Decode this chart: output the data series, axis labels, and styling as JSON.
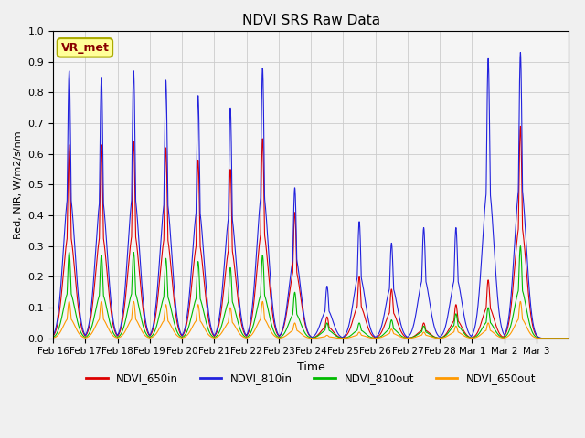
{
  "title": "NDVI SRS Raw Data",
  "xlabel": "Time",
  "ylabel": "Red, NIR, W/m2/s/nm",
  "ylim": [
    0.0,
    1.0
  ],
  "annotation": "VR_met",
  "bg_color": "#f0f0f0",
  "plot_bg_color": "#f5f5f5",
  "grid_color": "#cccccc",
  "colors": {
    "NDVI_650in": "#dd0000",
    "NDVI_810in": "#2222dd",
    "NDVI_810out": "#00bb00",
    "NDVI_650out": "#ff9900"
  },
  "tick_labels": [
    "Feb 16",
    "Feb 17",
    "Feb 18",
    "Feb 19",
    "Feb 20",
    "Feb 21",
    "Feb 22",
    "Feb 23",
    "Feb 24",
    "Feb 25",
    "Feb 26",
    "Feb 27",
    "Feb 28",
    "Mar 1",
    "Mar 2",
    "Mar 3"
  ],
  "day_peaks": {
    "NDVI_650in": [
      0.63,
      0.63,
      0.64,
      0.62,
      0.58,
      0.55,
      0.65,
      0.41,
      0.07,
      0.2,
      0.16,
      0.05,
      0.11,
      0.19,
      0.69,
      0.0
    ],
    "NDVI_810in": [
      0.87,
      0.85,
      0.87,
      0.84,
      0.79,
      0.75,
      0.88,
      0.49,
      0.17,
      0.38,
      0.31,
      0.36,
      0.36,
      0.91,
      0.93,
      0.0
    ],
    "NDVI_810out": [
      0.28,
      0.27,
      0.28,
      0.26,
      0.25,
      0.23,
      0.27,
      0.15,
      0.05,
      0.05,
      0.06,
      0.04,
      0.08,
      0.1,
      0.3,
      0.0
    ],
    "NDVI_650out": [
      0.12,
      0.12,
      0.12,
      0.11,
      0.11,
      0.1,
      0.12,
      0.05,
      0.01,
      0.02,
      0.03,
      0.02,
      0.04,
      0.05,
      0.12,
      0.0
    ]
  },
  "n_days": 16,
  "pts_per_day": 200,
  "spike_sigma_narrow": 0.055,
  "spike_sigma_wide": 0.18,
  "spike_wide_scale": 0.55
}
